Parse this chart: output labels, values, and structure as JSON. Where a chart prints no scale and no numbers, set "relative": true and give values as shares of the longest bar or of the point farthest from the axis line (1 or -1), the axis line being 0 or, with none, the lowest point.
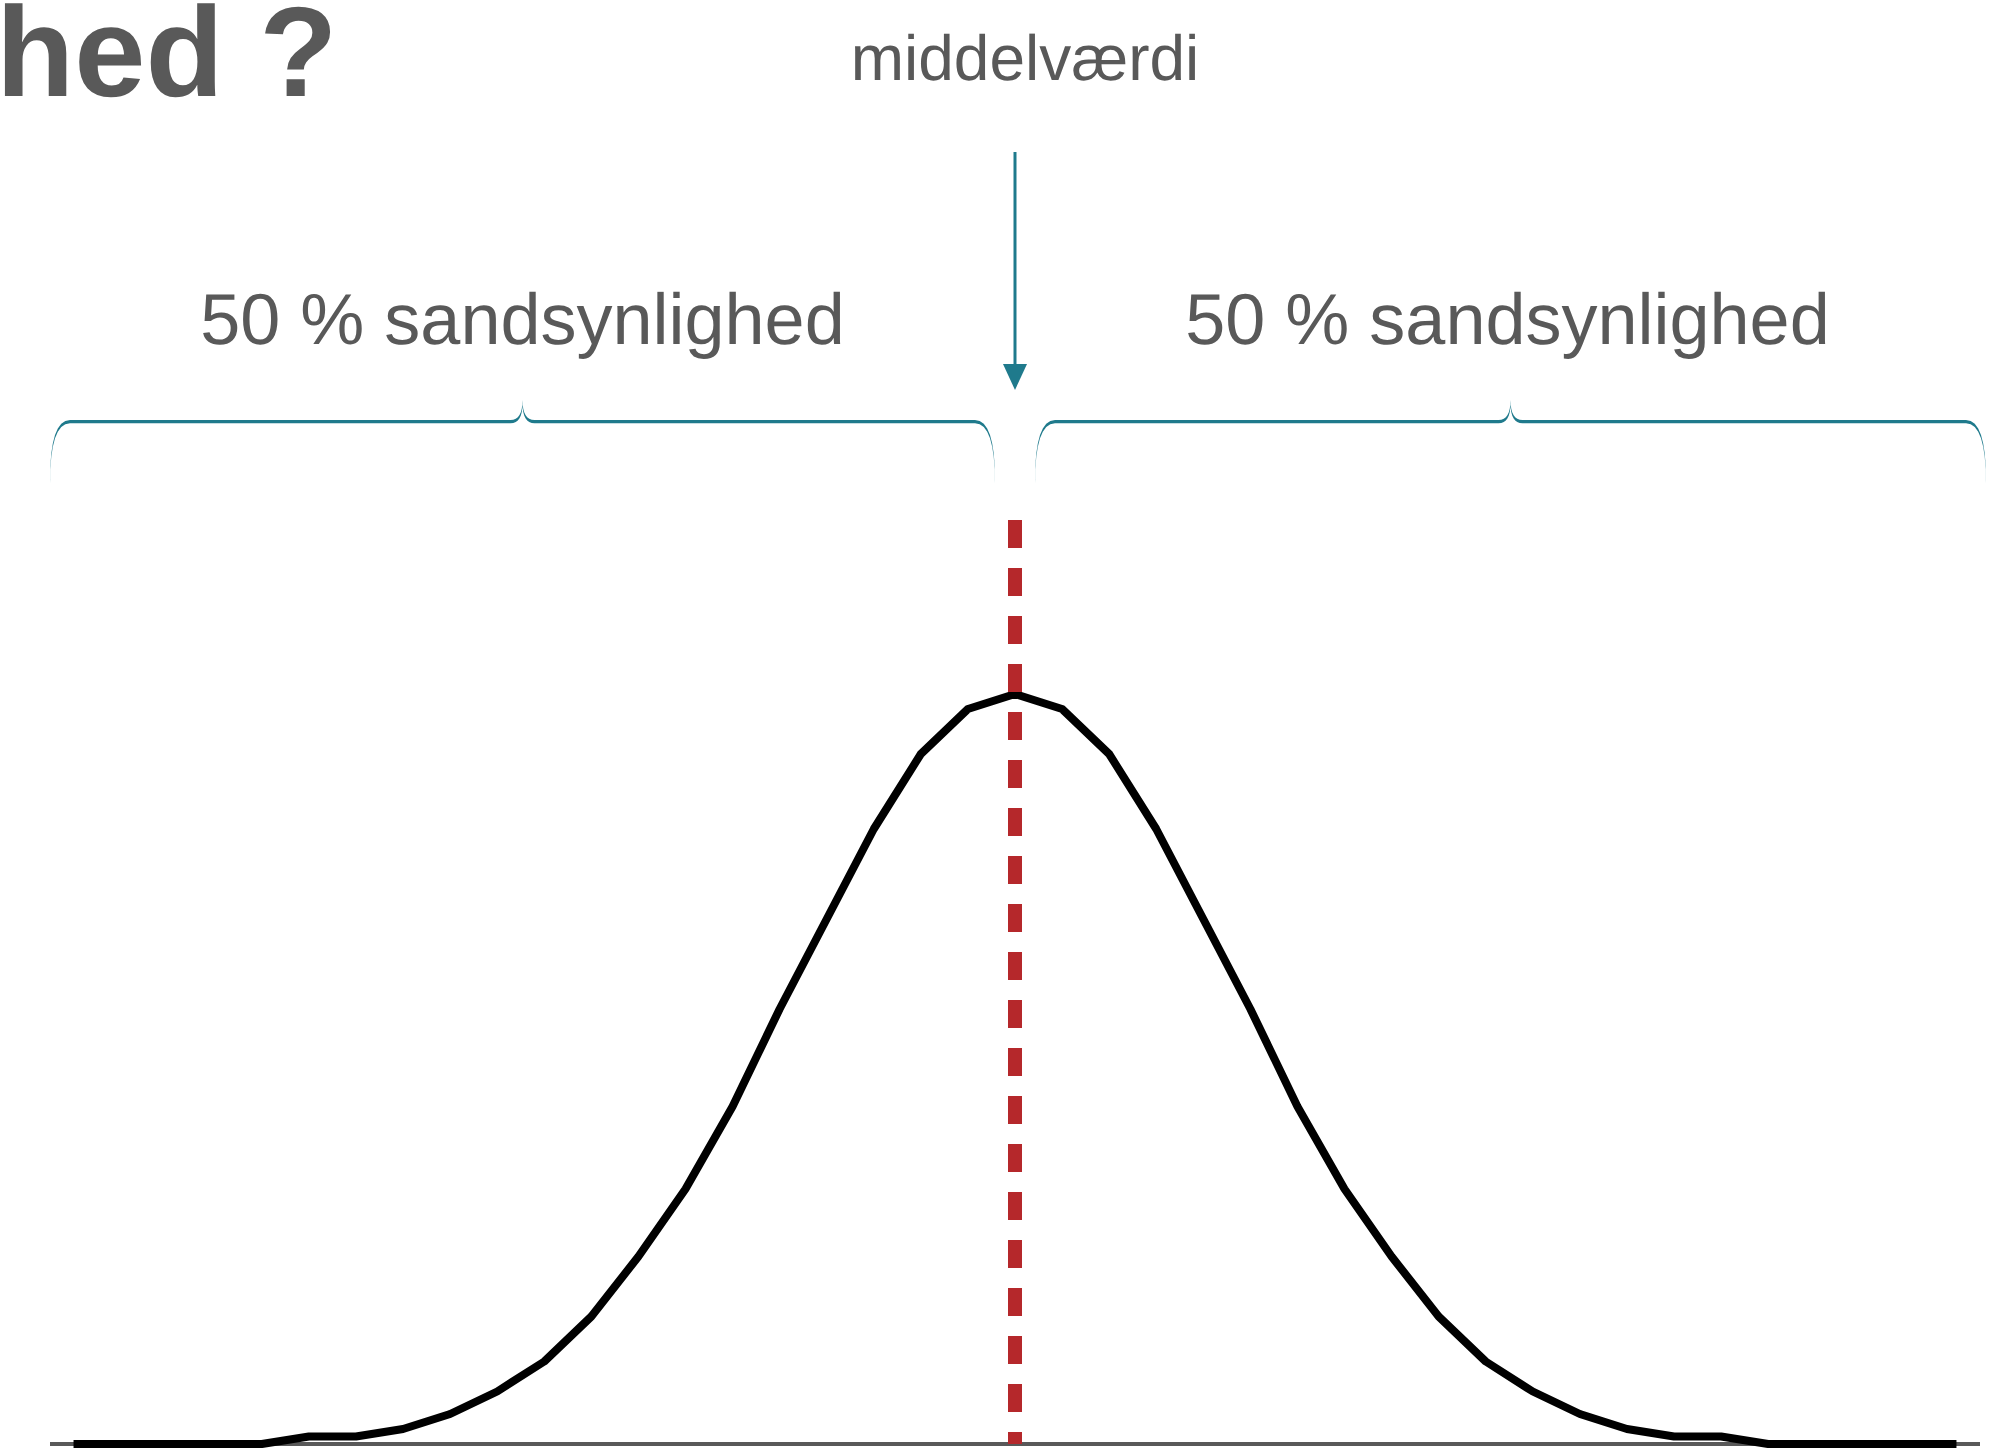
{
  "chart_data": {
    "type": "line",
    "title": "hed ?",
    "relative": true,
    "categories": [
      null,
      null,
      null,
      null,
      null,
      null,
      null,
      null,
      null,
      null,
      null,
      null,
      null,
      null,
      null,
      null,
      null,
      null,
      null,
      null,
      null,
      null,
      null,
      null,
      null,
      null,
      null,
      null,
      null,
      null,
      null,
      null,
      null,
      null,
      null,
      null,
      null,
      null,
      null,
      null,
      null
    ],
    "series": [
      {
        "color": "#000000",
        "values": [
          0,
          0,
          0,
          0,
          0,
          0.01,
          0.01,
          0.02,
          0.04,
          0.07,
          0.11,
          0.17,
          0.25,
          0.34,
          0.45,
          0.58,
          0.7,
          0.82,
          0.92,
          0.98,
          1,
          0.98,
          0.92,
          0.82,
          0.7,
          0.58,
          0.45,
          0.34,
          0.25,
          0.17,
          0.11,
          0.07,
          0.04,
          0.02,
          0.01,
          0.01,
          0,
          0,
          0,
          0,
          0
        ]
      }
    ],
    "annotations": [
      "middelværdi",
      "50 % sandsynlighed",
      "50 % sandsynlighed"
    ],
    "marker": "none",
    "line_style": "solid"
  }
}
